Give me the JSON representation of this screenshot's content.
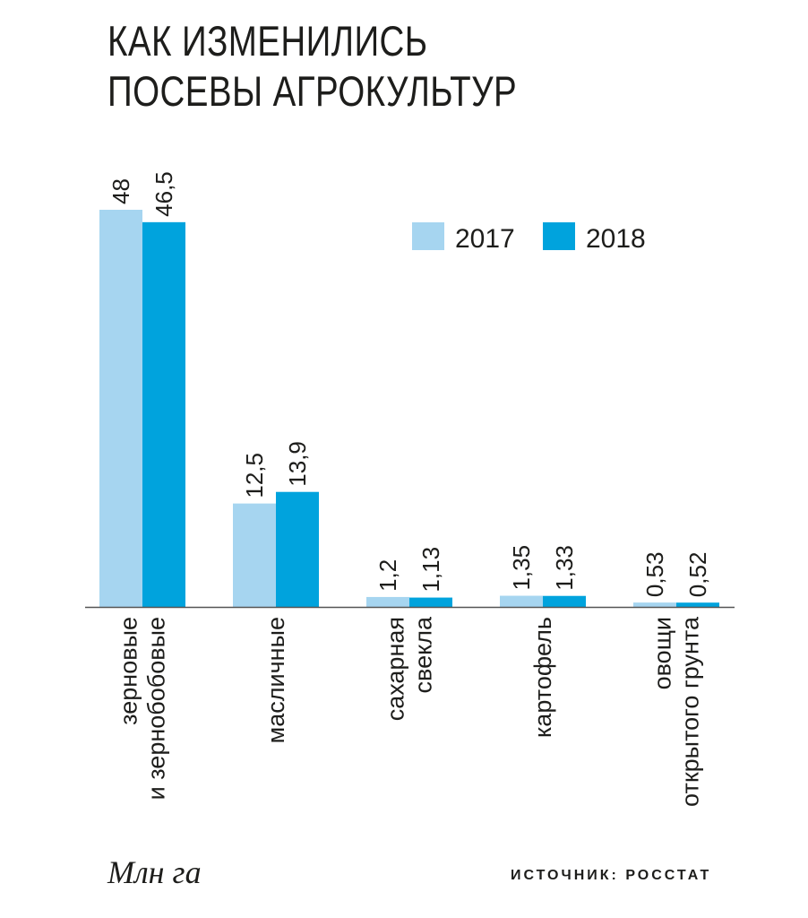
{
  "title": {
    "line1": "КАК ИЗМЕНИЛИСЬ",
    "line2": "ПОСЕВЫ АГРОКУЛЬТУР"
  },
  "unit_label": "Млн га",
  "source": "ИСТОЧНИК: РОССТАТ",
  "colors": {
    "s2017": "#a6d5f0",
    "s2018": "#00a3dd",
    "text": "#1d1d1b",
    "axis": "#555555"
  },
  "chart_data": {
    "type": "bar",
    "categories": [
      [
        "зерновые",
        "и зернобобовые"
      ],
      [
        "масличные"
      ],
      [
        "сахарная",
        "свекла"
      ],
      [
        "картофель"
      ],
      [
        "овощи",
        "открытого грунта"
      ]
    ],
    "series": [
      {
        "name": "2017",
        "values": [
          48,
          12.5,
          1.2,
          1.35,
          0.53
        ],
        "labels": [
          "48",
          "12,5",
          "1,2",
          "1,35",
          "0,53"
        ]
      },
      {
        "name": "2018",
        "values": [
          46.5,
          13.9,
          1.13,
          1.33,
          0.52
        ],
        "labels": [
          "46,5",
          "13,9",
          "1,13",
          "1,33",
          "0,52"
        ]
      }
    ],
    "ylim": [
      0,
      48
    ],
    "legend_position": "top-right"
  }
}
